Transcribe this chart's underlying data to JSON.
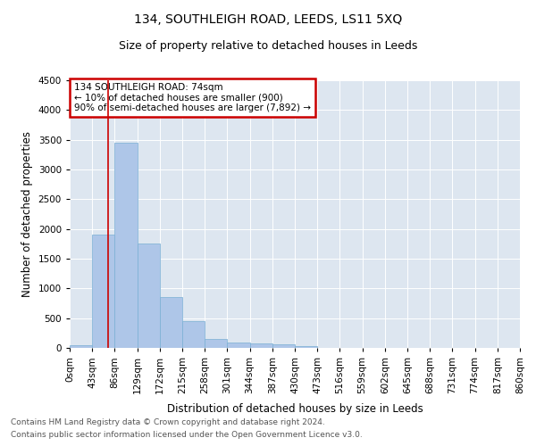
{
  "title": "134, SOUTHLEIGH ROAD, LEEDS, LS11 5XQ",
  "subtitle": "Size of property relative to detached houses in Leeds",
  "xlabel": "Distribution of detached houses by size in Leeds",
  "ylabel": "Number of detached properties",
  "footnote1": "Contains HM Land Registry data © Crown copyright and database right 2024.",
  "footnote2": "Contains public sector information licensed under the Open Government Licence v3.0.",
  "annotation_line1": "134 SOUTHLEIGH ROAD: 74sqm",
  "annotation_line2": "← 10% of detached houses are smaller (900)",
  "annotation_line3": "90% of semi-detached houses are larger (7,892) →",
  "property_size": 74,
  "bin_edges": [
    0,
    43,
    86,
    129,
    172,
    215,
    258,
    301,
    344,
    387,
    430,
    473,
    516,
    559,
    602,
    645,
    688,
    731,
    774,
    817,
    860
  ],
  "bar_heights": [
    45,
    1900,
    3450,
    1760,
    850,
    445,
    155,
    90,
    75,
    55,
    35,
    0,
    0,
    0,
    0,
    0,
    0,
    0,
    0,
    0
  ],
  "bar_color": "#aec6e8",
  "bar_edge_color": "#7aafd4",
  "vline_color": "#cc0000",
  "background_color": "#dde6f0",
  "ylim": [
    0,
    4500
  ],
  "yticks": [
    0,
    500,
    1000,
    1500,
    2000,
    2500,
    3000,
    3500,
    4000,
    4500
  ],
  "annotation_box_color": "#cc0000",
  "title_fontsize": 10,
  "subtitle_fontsize": 9,
  "axis_label_fontsize": 8.5,
  "tick_fontsize": 7.5,
  "footnote_fontsize": 6.5
}
